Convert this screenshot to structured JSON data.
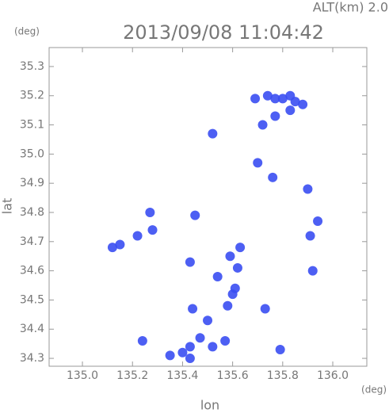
{
  "chart_data": {
    "type": "scatter",
    "annotation": "ALT(km) 2.0",
    "title": "2013/09/08 11:04:42",
    "y_unit": "(deg)",
    "x_unit": "(deg)",
    "xlabel": "lon",
    "ylabel": "lat",
    "color": "#3a4ef2",
    "x": [
      135.74,
      135.77,
      135.8,
      135.83,
      135.85,
      135.88,
      135.83,
      135.69,
      135.77,
      135.72,
      135.52,
      135.7,
      135.76,
      135.9,
      135.94,
      135.91,
      135.92,
      135.12,
      135.15,
      135.22,
      135.28,
      135.27,
      135.45,
      135.63,
      135.59,
      135.62,
      135.43,
      135.54,
      135.6,
      135.58,
      135.61,
      135.44,
      135.5,
      135.73,
      135.24,
      135.43,
      135.4,
      135.35,
      135.43,
      135.47,
      135.52,
      135.57,
      135.79
    ],
    "values": [
      35.2,
      35.19,
      35.19,
      35.2,
      35.18,
      35.17,
      35.15,
      35.19,
      35.13,
      35.1,
      35.07,
      34.97,
      34.92,
      34.88,
      34.77,
      34.72,
      34.6,
      34.68,
      34.69,
      34.72,
      34.74,
      34.8,
      34.79,
      34.68,
      34.65,
      34.61,
      34.63,
      34.58,
      34.52,
      34.48,
      34.54,
      34.47,
      34.43,
      34.47,
      34.36,
      34.34,
      34.32,
      34.31,
      34.3,
      34.37,
      34.34,
      34.36,
      34.33
    ],
    "xlim": [
      134.867,
      136.136
    ],
    "ylim": [
      34.273,
      35.365
    ],
    "xticks": [
      {
        "value": 135.0,
        "label": "135.0"
      },
      135.2,
      135.4,
      135.6,
      135.8,
      {
        "value": 136.0,
        "label": "136.0"
      }
    ],
    "yticks": [
      34.3,
      34.4,
      34.5,
      34.6,
      34.7,
      34.8,
      34.9,
      {
        "value": 35.0,
        "label": "35.0"
      },
      35.1,
      35.2,
      35.3
    ]
  }
}
